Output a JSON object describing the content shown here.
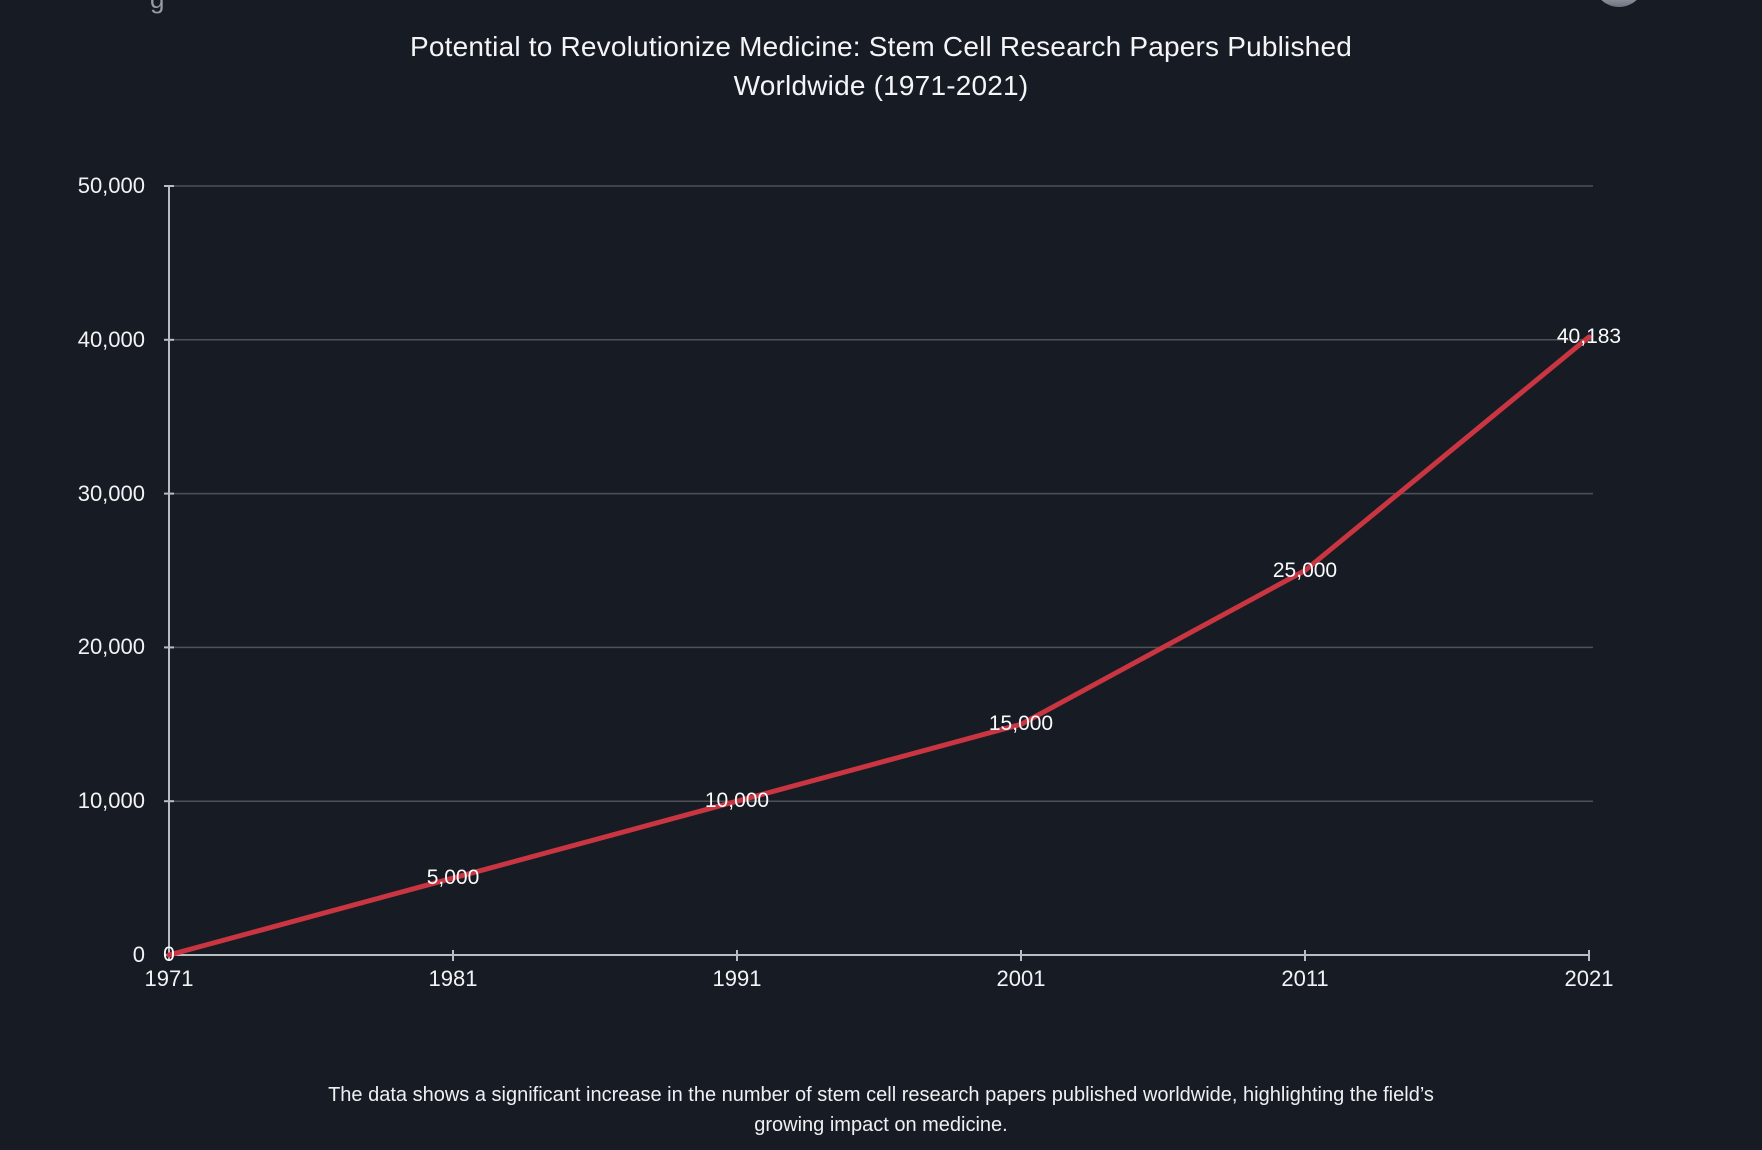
{
  "page": {
    "background_color": "#171b24",
    "remnants": {
      "top_left_glyph": "g"
    }
  },
  "chart_data": {
    "type": "line",
    "title": "Potential to Revolutionize Medicine: Stem Cell Research Papers Published Worldwide (1971-2021)",
    "title_lines": {
      "line1": "Potential to Revolutionize Medicine: Stem Cell Research Papers Published",
      "line2": "Worldwide (1971-2021)"
    },
    "x": [
      1971,
      1981,
      1991,
      2001,
      2011,
      2021
    ],
    "values": [
      0,
      5000,
      10000,
      15000,
      25000,
      40183
    ],
    "point_labels": [
      "0",
      "5,000",
      "10,000",
      "15,000",
      "25,000",
      "40,183"
    ],
    "x_tick_labels": [
      "1971",
      "1981",
      "1991",
      "2001",
      "2011",
      "2021"
    ],
    "y_ticks": [
      0,
      10000,
      20000,
      30000,
      40000,
      50000
    ],
    "y_tick_labels": [
      "0",
      "10,000",
      "20,000",
      "30,000",
      "40,000",
      "50,000"
    ],
    "xlim": [
      1971,
      2021
    ],
    "ylim": [
      0,
      50000
    ],
    "xlabel": "",
    "ylabel": "",
    "grid": "horizontal",
    "legend": "none",
    "line_color": "#c93540",
    "axis_color": "#b9bcc2",
    "grid_color": "rgba(255,255,255,0.24)",
    "text_color": "#f2f3f5"
  },
  "caption": {
    "line1": "The data shows a significant increase in the number of stem cell research papers published worldwide, highlighting the field’s",
    "line2": "growing impact on medicine.",
    "full_text": "The data shows a significant increase in the number of stem cell research papers published worldwide, highlighting the field’s growing impact on medicine."
  }
}
